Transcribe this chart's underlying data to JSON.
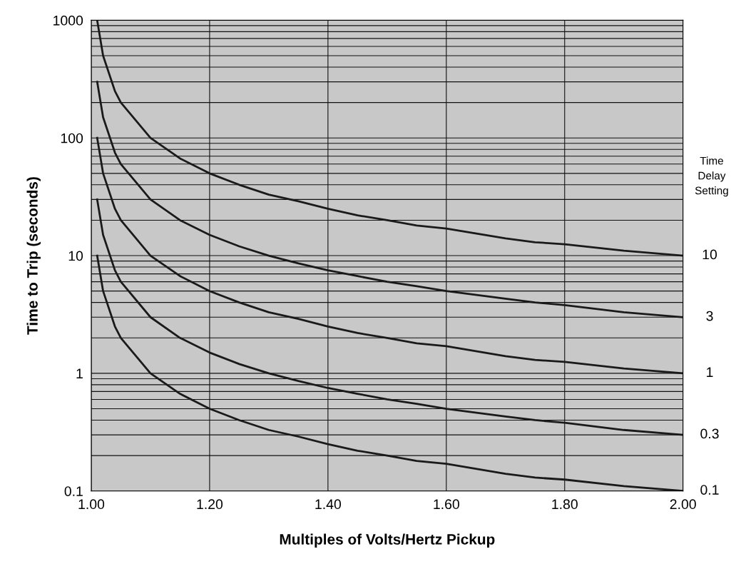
{
  "chart_data": {
    "type": "line",
    "xlabel": "Multiples of Volts/Hertz Pickup",
    "ylabel": "Time to Trip (seconds)",
    "x": [
      1.01,
      1.02,
      1.04,
      1.05,
      1.1,
      1.15,
      1.2,
      1.25,
      1.3,
      1.35,
      1.4,
      1.45,
      1.5,
      1.55,
      1.6,
      1.7,
      1.75,
      1.8,
      1.9,
      2.0
    ],
    "series": [
      {
        "name": "10",
        "color": "#1a1a1a",
        "values": [
          1000,
          500,
          250,
          200,
          100,
          67,
          50,
          40,
          33,
          29,
          25,
          22,
          20,
          18,
          17,
          14,
          13,
          12.5,
          11,
          10
        ]
      },
      {
        "name": "3",
        "color": "#1a1a1a",
        "values": [
          300,
          150,
          75,
          60,
          30,
          20,
          15,
          12,
          10,
          8.6,
          7.5,
          6.7,
          6,
          5.5,
          5,
          4.3,
          4,
          3.8,
          3.3,
          3
        ]
      },
      {
        "name": "1",
        "color": "#1a1a1a",
        "values": [
          100,
          50,
          25,
          20,
          10,
          6.7,
          5,
          4,
          3.3,
          2.9,
          2.5,
          2.2,
          2,
          1.8,
          1.7,
          1.4,
          1.3,
          1.25,
          1.1,
          1
        ]
      },
      {
        "name": "0.3",
        "color": "#1a1a1a",
        "values": [
          30,
          15,
          7.5,
          6,
          3,
          2,
          1.5,
          1.2,
          1,
          0.86,
          0.75,
          0.67,
          0.6,
          0.55,
          0.5,
          0.43,
          0.4,
          0.38,
          0.33,
          0.3
        ]
      },
      {
        "name": "0.1",
        "color": "#1a1a1a",
        "values": [
          10,
          5,
          2.5,
          2,
          1,
          0.67,
          0.5,
          0.4,
          0.33,
          0.29,
          0.25,
          0.22,
          0.2,
          0.18,
          0.17,
          0.14,
          0.13,
          0.125,
          0.11,
          0.1
        ]
      }
    ],
    "annotations": [
      "Time Delay Setting"
    ],
    "log": "y",
    "xlim": [
      1.0,
      2.0
    ],
    "ylim": [
      0.1,
      1000
    ],
    "xticks": [
      {
        "value": 1.0,
        "label": "1.00"
      },
      {
        "value": 1.2,
        "label": "1.20"
      },
      {
        "value": 1.4,
        "label": "1.40"
      },
      {
        "value": 1.6,
        "label": "1.60"
      },
      {
        "value": 1.8,
        "label": "1.80"
      },
      {
        "value": 2.0,
        "label": "2.00"
      }
    ],
    "yticks": [
      0.1,
      1,
      10,
      100,
      1000
    ],
    "grid": true,
    "legend": false,
    "marker": "none",
    "line_style": "solid"
  }
}
